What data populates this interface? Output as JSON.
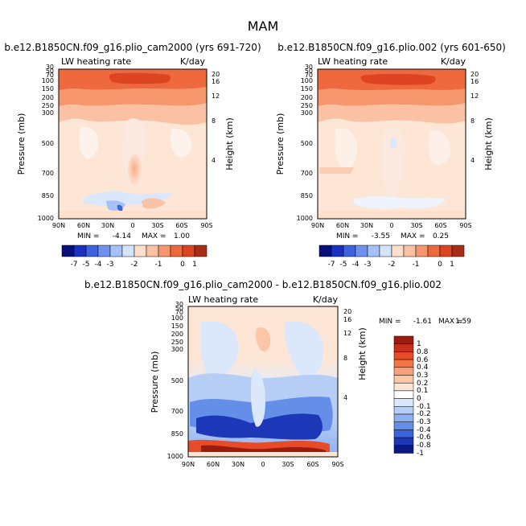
{
  "figure": {
    "title": "MAM"
  },
  "chart_data": [
    {
      "type": "heatmap",
      "title": "b.e12.B1850CN.f09_g16.plio_cam2000 (yrs 691-720)",
      "variable": "LW heating rate",
      "units": "K/day",
      "xlabel": "",
      "ylabel": "Pressure (mb)",
      "ylabel_right": "Height (km)",
      "x_ticks": [
        "90N",
        "60N",
        "30N",
        "0",
        "30S",
        "60S",
        "90S"
      ],
      "y_ticks": [
        "1000",
        "850",
        "700",
        "500",
        "300",
        "250",
        "200",
        "150",
        "100",
        "70",
        "50",
        "30"
      ],
      "y_ticks_right": [
        "20",
        "16",
        "12",
        "8",
        "4"
      ],
      "min_label": "MIN =",
      "min": "-4.14",
      "max_label": "MAX =",
      "max": "1.00",
      "colorbar_levels": [
        "-7",
        "-5",
        "-4",
        "-3",
        "-2",
        "-1",
        "0",
        "1"
      ]
    },
    {
      "type": "heatmap",
      "title": "b.e12.B1850CN.f09_g16.plio.002 (yrs 601-650)",
      "variable": "LW heating rate",
      "units": "K/day",
      "xlabel": "",
      "ylabel": "Pressure (mb)",
      "ylabel_right": "Height (km)",
      "x_ticks": [
        "90N",
        "60N",
        "30N",
        "0",
        "30S",
        "60S",
        "90S"
      ],
      "y_ticks": [
        "1000",
        "850",
        "700",
        "500",
        "300",
        "250",
        "200",
        "150",
        "100",
        "70",
        "50",
        "30"
      ],
      "y_ticks_right": [
        "20",
        "16",
        "12",
        "8",
        "4"
      ],
      "min_label": "MIN =",
      "min": "-3.55",
      "max_label": "MAX =",
      "max": "0.25",
      "colorbar_levels": [
        "-7",
        "-5",
        "-4",
        "-3",
        "-2",
        "-1",
        "0",
        "1"
      ]
    },
    {
      "type": "heatmap",
      "title": "b.e12.B1850CN.f09_g16.plio_cam2000 - b.e12.B1850CN.f09_g16.plio.002",
      "variable": "LW heating rate",
      "units": "K/day",
      "xlabel": "",
      "ylabel": "Pressure (mb)",
      "ylabel_right": "Height (km)",
      "x_ticks": [
        "90N",
        "60N",
        "30N",
        "0",
        "30S",
        "60S",
        "90S"
      ],
      "y_ticks": [
        "1000",
        "850",
        "700",
        "500",
        "300",
        "250",
        "200",
        "150",
        "100",
        "70",
        "50",
        "30"
      ],
      "y_ticks_right": [
        "20",
        "16",
        "12",
        "8",
        "4"
      ],
      "min_label": "MIN =",
      "min": "-1.61",
      "max_label": "MAX =",
      "max": "1.59",
      "colorbar_levels": [
        "1",
        "0.8",
        "0.6",
        "0.4",
        "0.3",
        "0.2",
        "0.1",
        "0",
        "-0.1",
        "-0.2",
        "-0.3",
        "-0.4",
        "-0.6",
        "-0.8",
        "-1"
      ]
    }
  ],
  "colors": {
    "abs_scale": [
      "#08107a",
      "#1a2fc4",
      "#3e63e0",
      "#6f92f0",
      "#a6c1f7",
      "#d6e4fb",
      "#fde0cc",
      "#fbc1a5",
      "#f6966d",
      "#ee6a3e",
      "#dd4422",
      "#a82c18"
    ],
    "diff_scale": [
      "#9b1c0e",
      "#c6301a",
      "#e84b27",
      "#f27447",
      "#f7a07b",
      "#fbc6a8",
      "#fde6d6",
      "#ffffff",
      "#dbe7fb",
      "#b6cdf6",
      "#8eb0f0",
      "#648ee8",
      "#3d63db",
      "#1c38b8",
      "#0b1884"
    ]
  }
}
